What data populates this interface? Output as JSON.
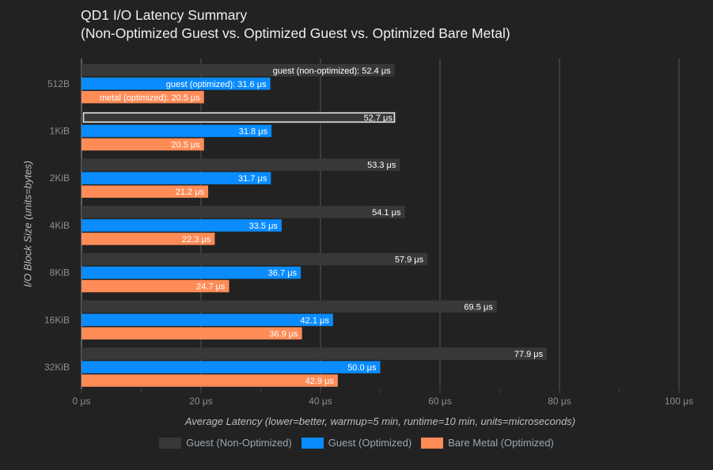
{
  "title_line1": "QD1 I/O Latency Summary",
  "title_line2": "(Non-Optimized Guest vs. Optimized Guest vs. Optimized Bare Metal)",
  "chart_data": {
    "type": "bar",
    "orientation": "horizontal",
    "categories": [
      "512B",
      "1KiB",
      "2KiB",
      "4KiB",
      "8KiB",
      "16KiB",
      "32KiB"
    ],
    "series": [
      {
        "name": "Guest (Non-Optimized)",
        "label_prefix": "guest (non-optimized): ",
        "color": "#383838",
        "values": [
          52.4,
          52.7,
          53.3,
          54.1,
          57.9,
          69.5,
          77.9
        ]
      },
      {
        "name": "Guest (Optimized)",
        "label_prefix": "guest (optimized): ",
        "color": "#0a8cff",
        "values": [
          31.6,
          31.8,
          31.7,
          33.5,
          36.7,
          42.1,
          50.0
        ]
      },
      {
        "name": "Bare Metal (Optimized)",
        "label_prefix": "metal (optimized): ",
        "color": "#ff8c57",
        "values": [
          20.5,
          20.5,
          21.2,
          22.3,
          24.7,
          36.9,
          42.9
        ]
      }
    ],
    "unit": "μs",
    "xlabel": "Average Latency (lower=better, warmup=5 min, runtime=10 min, units=microseconds)",
    "ylabel": "I/O Block Size (units=bytes)",
    "xlim": [
      0,
      100
    ],
    "xticks": [
      0,
      20,
      40,
      60,
      80,
      100
    ],
    "xtick_labels": [
      "0 μs",
      "20 μs",
      "40 μs",
      "60 μs",
      "80 μs",
      "100 μs"
    ],
    "grid": true,
    "legend_position": "bottom",
    "highlighted": {
      "category": "1KiB",
      "series": "Guest (Non-Optimized)"
    }
  }
}
